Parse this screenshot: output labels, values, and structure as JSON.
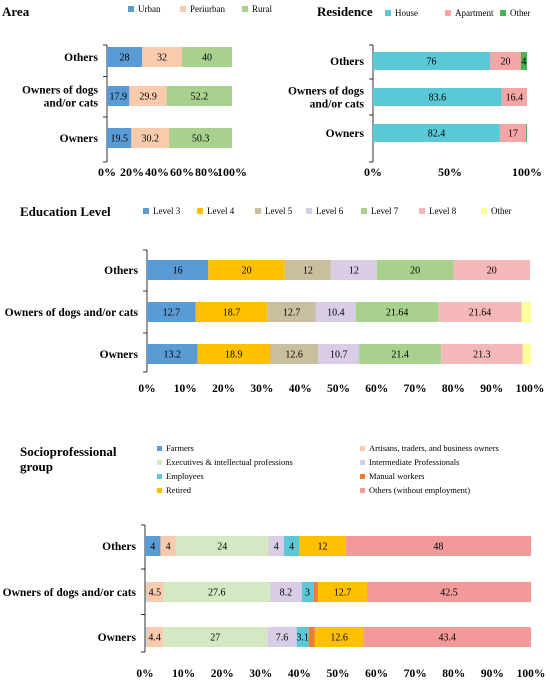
{
  "chart_data": [
    {
      "type": "bar",
      "orientation": "horizontal",
      "stacked": true,
      "title": "Area",
      "categories": [
        "Others",
        "Owners of dogs and/or cats",
        "Owners"
      ],
      "category_lines": [
        [
          "Others"
        ],
        [
          "Owners of dogs",
          "and/or cats"
        ],
        [
          "Owners"
        ]
      ],
      "series": [
        {
          "name": "Urban",
          "color": "#5b9bd5",
          "values": [
            28,
            17.9,
            19.5
          ]
        },
        {
          "name": "Periurban",
          "color": "#f8cbad",
          "values": [
            32,
            29.9,
            30.2
          ]
        },
        {
          "name": "Rural",
          "color": "#a9d18e",
          "values": [
            40,
            52.2,
            50.3
          ]
        }
      ],
      "labels": [
        [
          "28",
          "32",
          "40"
        ],
        [
          "17.9",
          "29.9",
          "52.2"
        ],
        [
          "19.5",
          "30.2",
          "50.3"
        ]
      ],
      "xlim": [
        0,
        100
      ],
      "xticks": [
        "0%",
        "20%",
        "40%",
        "60%",
        "80%",
        "100%"
      ],
      "legend": "top"
    },
    {
      "type": "bar",
      "orientation": "horizontal",
      "stacked": true,
      "title": "Residence",
      "categories": [
        "Others",
        "Owners of dogs and/or cats",
        "Owners"
      ],
      "category_lines": [
        [
          "Others"
        ],
        [
          "Owners of dogs",
          "and/or cats"
        ],
        [
          "Owners"
        ]
      ],
      "series": [
        {
          "name": "House",
          "color": "#5bc8d8",
          "values": [
            76,
            83.6,
            82.4
          ]
        },
        {
          "name": "Apartment",
          "color": "#f4a6a6",
          "values": [
            20,
            16.4,
            17
          ]
        },
        {
          "name": "Other",
          "color": "#4caf50",
          "values": [
            4,
            0,
            0.6
          ]
        }
      ],
      "labels": [
        [
          "76",
          "20",
          "4"
        ],
        [
          "83.6",
          "16.4",
          ""
        ],
        [
          "82.4",
          "17",
          ""
        ]
      ],
      "xlim": [
        0,
        100
      ],
      "xticks": [
        "0%",
        "50%",
        "100%"
      ],
      "legend": "top"
    },
    {
      "type": "bar",
      "orientation": "horizontal",
      "stacked": true,
      "title": "Education Level",
      "categories": [
        "Others",
        "Owners of dogs and/or cats",
        "Owners"
      ],
      "category_lines": [
        [
          "Others"
        ],
        [
          "Owners of dogs and/or cats"
        ],
        [
          "Owners"
        ]
      ],
      "series": [
        {
          "name": "Level 3",
          "color": "#5b9bd5",
          "values": [
            16,
            12.7,
            13.2
          ]
        },
        {
          "name": "Level 4",
          "color": "#ffc000",
          "values": [
            20,
            18.7,
            18.9
          ]
        },
        {
          "name": "Level 5",
          "color": "#c9bf9e",
          "values": [
            12,
            12.7,
            12.6
          ]
        },
        {
          "name": "Level 6",
          "color": "#d9cde6",
          "values": [
            12,
            10.4,
            10.7
          ]
        },
        {
          "name": "Level 7",
          "color": "#a9d18e",
          "values": [
            20,
            21.64,
            21.4
          ]
        },
        {
          "name": "Level 8",
          "color": "#f4b8b8",
          "values": [
            20,
            21.64,
            21.3
          ]
        },
        {
          "name": "Other",
          "color": "#ffff99",
          "values": [
            0,
            2.52,
            2.2
          ]
        }
      ],
      "labels": [
        [
          "16",
          "20",
          "12",
          "12",
          "20",
          "20",
          ""
        ],
        [
          "12.7",
          "18.7",
          "12.7",
          "10.4",
          "21.64",
          "21.64",
          ""
        ],
        [
          "13.2",
          "18.9",
          "12.6",
          "10.7",
          "21.4",
          "21.3",
          ""
        ]
      ],
      "xlim": [
        0,
        100
      ],
      "xticks": [
        "0%",
        "10%",
        "20%",
        "30%",
        "40%",
        "50%",
        "60%",
        "70%",
        "80%",
        "90%",
        "100%"
      ],
      "legend": "top"
    },
    {
      "type": "bar",
      "orientation": "horizontal",
      "stacked": true,
      "title": "Socioprofessional group",
      "title_lines": [
        "Socioprofessional",
        "group"
      ],
      "categories": [
        "Others",
        "Owners of dogs and/or cats",
        "Owners"
      ],
      "category_lines": [
        [
          "Others"
        ],
        [
          "Owners of dogs and/or cats"
        ],
        [
          "Owners"
        ]
      ],
      "series": [
        {
          "name": "Farmers",
          "color": "#5b9bd5",
          "values": [
            4,
            0.3,
            0.3
          ]
        },
        {
          "name": "Artisans, traders, and business owners",
          "color": "#f8cbad",
          "values": [
            4,
            4.5,
            4.4
          ]
        },
        {
          "name": "Executives & intellectual professions",
          "color": "#d5e8c4",
          "values": [
            24,
            27.6,
            27
          ]
        },
        {
          "name": "Intermediate Professionals",
          "color": "#d9cde6",
          "values": [
            4,
            8.2,
            7.6
          ]
        },
        {
          "name": "Employees",
          "color": "#5bc8d8",
          "values": [
            4,
            3,
            3.1
          ]
        },
        {
          "name": "Manual workers",
          "color": "#ed7d31",
          "values": [
            0,
            1.2,
            1.6
          ]
        },
        {
          "name": "Retired",
          "color": "#ffc000",
          "values": [
            12,
            12.7,
            12.6
          ]
        },
        {
          "name": "Others (without employment)",
          "color": "#f29a9a",
          "values": [
            48,
            42.5,
            43.4
          ]
        }
      ],
      "labels": [
        [
          "4",
          "4",
          "24",
          "4",
          "4",
          "",
          "12",
          "48"
        ],
        [
          "",
          "4.5",
          "27.6",
          "8.2",
          "3",
          "",
          "12.7",
          "42.5"
        ],
        [
          "",
          "4.4",
          "27",
          "7.6",
          "3.1",
          "",
          "12.6",
          "43.4"
        ]
      ],
      "xlim": [
        0,
        100
      ],
      "xticks": [
        "0%",
        "10%",
        "20%",
        "30%",
        "40%",
        "50%",
        "60%",
        "70%",
        "80%",
        "90%",
        "100%"
      ],
      "legend": "top-two-columns"
    }
  ]
}
